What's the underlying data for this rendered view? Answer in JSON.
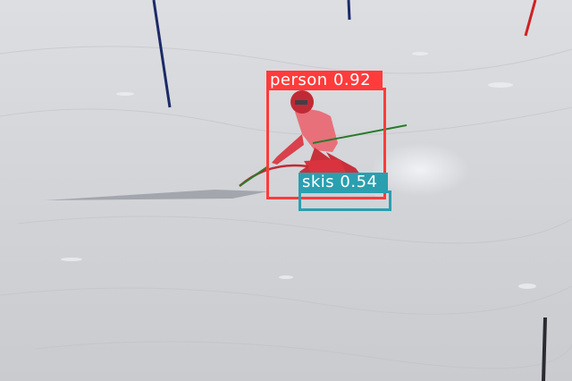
{
  "detections": [
    {
      "label": "person",
      "score": "0.92",
      "color": "#ff3b3b"
    },
    {
      "label": "skis",
      "score": "0.54",
      "color": "#2a9fb0"
    }
  ]
}
